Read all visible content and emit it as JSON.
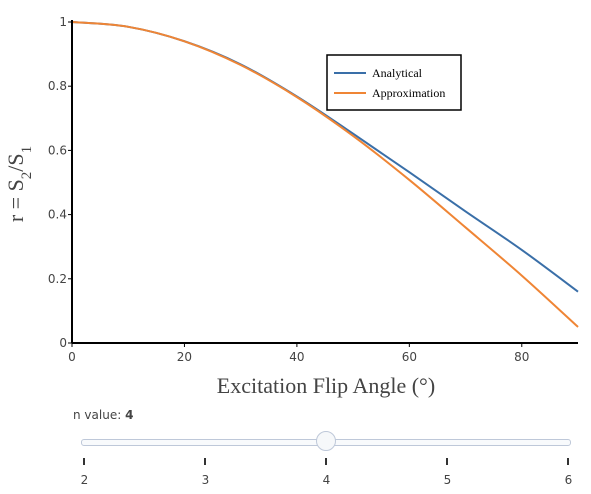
{
  "chart_data": {
    "type": "line",
    "title": "",
    "xlabel": "Excitation Flip Angle (°)",
    "ylabel": "r = S2/S1",
    "xlim": [
      0,
      90
    ],
    "ylim": [
      0,
      1
    ],
    "x_ticks": [
      0,
      20,
      40,
      60,
      80
    ],
    "y_ticks": [
      0,
      0.2,
      0.4,
      0.6,
      0.8,
      1
    ],
    "grid": false,
    "legend_position": "top-right",
    "series": [
      {
        "name": "Analytical",
        "color": "#3a6fa8",
        "x": [
          0,
          10,
          20,
          30,
          40,
          50,
          60,
          70,
          80,
          90
        ],
        "y": [
          1.0,
          0.985,
          0.94,
          0.868,
          0.768,
          0.652,
          0.532,
          0.41,
          0.29,
          0.16
        ]
      },
      {
        "name": "Approximation",
        "color": "#ef8535",
        "x": [
          0,
          10,
          20,
          30,
          40,
          50,
          60,
          70,
          80,
          90
        ],
        "y": [
          1.0,
          0.985,
          0.94,
          0.866,
          0.766,
          0.645,
          0.508,
          0.36,
          0.21,
          0.05
        ]
      }
    ]
  },
  "slider": {
    "label_prefix": "n value: ",
    "current_value": "4",
    "ticks": [
      "2",
      "3",
      "4",
      "5",
      "6"
    ]
  }
}
